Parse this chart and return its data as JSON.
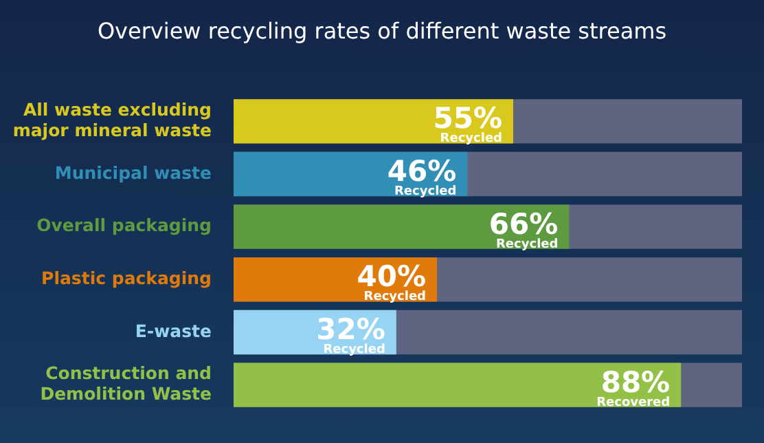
{
  "chart_data": {
    "type": "bar",
    "orientation": "horizontal",
    "title": "Overview recycling rates of different waste streams",
    "categories": [
      "All waste excluding major mineral waste",
      "Municipal waste",
      "Overall packaging",
      "Plastic packaging",
      "E-waste",
      "Construction and Demolition Waste"
    ],
    "values": [
      55,
      46,
      66,
      40,
      32,
      88
    ],
    "colors": [
      "#d9c91e",
      "#318eb5",
      "#5e9a40",
      "#e07a0a",
      "#97d4f3",
      "#93c147"
    ],
    "value_labels": [
      "55%\nRecycled",
      "46%\nRecycled",
      "66%\nRecycled",
      "40%\nRecycled",
      "32%\nRecycled",
      "88%\nRecovered"
    ],
    "xlim": [
      0,
      100
    ],
    "tick_labels": "y"
  }
}
